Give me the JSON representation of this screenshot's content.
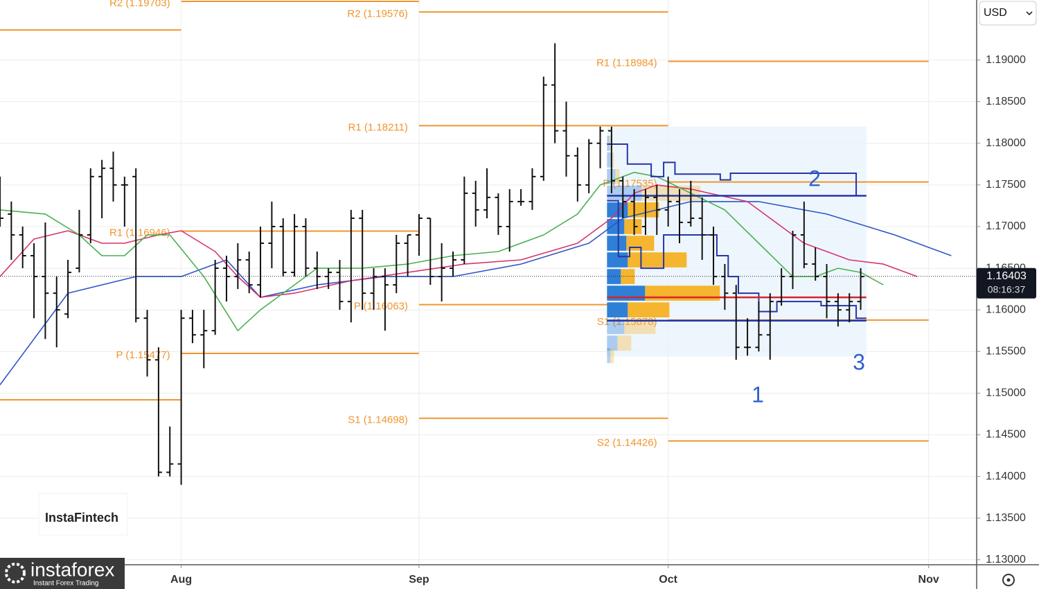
{
  "chart_data": {
    "type": "ohlc",
    "currency": "USD",
    "ylim": [
      1.1294,
      1.1972
    ],
    "yticks": [
      {
        "value": 1.13,
        "label": "1.13000"
      },
      {
        "value": 1.135,
        "label": "1.13500"
      },
      {
        "value": 1.14,
        "label": "1.14000"
      },
      {
        "value": 1.145,
        "label": "1.14500"
      },
      {
        "value": 1.15,
        "label": "1.15000"
      },
      {
        "value": 1.155,
        "label": "1.15500"
      },
      {
        "value": 1.16,
        "label": "1.16000"
      },
      {
        "value": 1.165,
        "label": "1.16500"
      },
      {
        "value": 1.17,
        "label": "1.17000"
      },
      {
        "value": 1.175,
        "label": "1.17500"
      },
      {
        "value": 1.18,
        "label": "1.18000"
      },
      {
        "value": 1.185,
        "label": "1.18500"
      },
      {
        "value": 1.19,
        "label": "1.19000"
      }
    ],
    "xlim": [
      -16,
      70.24
    ],
    "xticks": [
      {
        "value": 0,
        "label": "Aug"
      },
      {
        "value": 21,
        "label": "Sep"
      },
      {
        "value": 43,
        "label": "Oct"
      },
      {
        "value": 66,
        "label": "Nov"
      }
    ],
    "grid": true,
    "ohlc": {
      "color": "#111111",
      "x": [
        -16,
        -15,
        -14,
        -13,
        -12,
        -11,
        -10,
        -9,
        -8,
        -7,
        -6,
        -5,
        -4,
        -3,
        -2,
        -1,
        0,
        1,
        2,
        3,
        4,
        5,
        6,
        7,
        8,
        9,
        10,
        11,
        12,
        13,
        14,
        15,
        16,
        17,
        18,
        19,
        20,
        21,
        22,
        23,
        24,
        25,
        26,
        27,
        28,
        29,
        30,
        31,
        32,
        33,
        34,
        35,
        36,
        37,
        38,
        39,
        40,
        41,
        42,
        43,
        44,
        45,
        46,
        47,
        48,
        49,
        50,
        51,
        52,
        53,
        54,
        55,
        56,
        57,
        58,
        59,
        60
      ],
      "open": [
        1.174,
        1.1715,
        1.169,
        1.1665,
        1.164,
        1.162,
        1.1595,
        1.165,
        1.169,
        1.176,
        1.177,
        1.175,
        1.176,
        1.159,
        1.154,
        1.1405,
        1.1415,
        1.159,
        1.157,
        1.1575,
        1.165,
        1.164,
        1.166,
        1.163,
        1.168,
        1.17,
        1.1645,
        1.17,
        1.165,
        1.164,
        1.1645,
        1.161,
        1.171,
        1.162,
        1.164,
        1.163,
        1.168,
        1.169,
        1.171,
        1.164,
        1.165,
        1.166,
        1.174,
        1.172,
        1.1735,
        1.17,
        1.173,
        1.173,
        1.176,
        1.187,
        1.1815,
        1.1785,
        1.175,
        1.18,
        1.1815,
        1.1755,
        1.173,
        1.17,
        1.1735,
        1.172,
        1.173,
        1.1705,
        1.171,
        1.169,
        1.164,
        1.162,
        1.1555,
        1.1555,
        1.157,
        1.161,
        1.164,
        1.169,
        1.1655,
        1.164,
        1.161,
        1.16,
        1.161
      ],
      "high": [
        1.176,
        1.173,
        1.17,
        1.168,
        1.1705,
        1.164,
        1.166,
        1.172,
        1.177,
        1.178,
        1.179,
        1.176,
        1.177,
        1.16,
        1.1555,
        1.146,
        1.16,
        1.16,
        1.16,
        1.166,
        1.1665,
        1.168,
        1.167,
        1.17,
        1.173,
        1.171,
        1.1715,
        1.171,
        1.167,
        1.165,
        1.166,
        1.172,
        1.172,
        1.165,
        1.165,
        1.169,
        1.169,
        1.1715,
        1.171,
        1.168,
        1.167,
        1.176,
        1.1755,
        1.177,
        1.174,
        1.1745,
        1.1745,
        1.177,
        1.188,
        1.192,
        1.185,
        1.1795,
        1.1805,
        1.182,
        1.182,
        1.176,
        1.1745,
        1.1745,
        1.175,
        1.176,
        1.1745,
        1.1755,
        1.1735,
        1.17,
        1.1655,
        1.163,
        1.159,
        1.161,
        1.162,
        1.165,
        1.1695,
        1.173,
        1.1675,
        1.1655,
        1.162,
        1.162,
        1.165
      ],
      "low": [
        1.17,
        1.166,
        1.165,
        1.159,
        1.1565,
        1.1555,
        1.159,
        1.1645,
        1.168,
        1.171,
        1.173,
        1.17,
        1.1585,
        1.152,
        1.14,
        1.14,
        1.139,
        1.156,
        1.153,
        1.157,
        1.161,
        1.1625,
        1.162,
        1.1615,
        1.165,
        1.164,
        1.164,
        1.164,
        1.1625,
        1.1625,
        1.16,
        1.1585,
        1.16,
        1.16,
        1.1575,
        1.162,
        1.164,
        1.1665,
        1.163,
        1.161,
        1.164,
        1.1655,
        1.17,
        1.171,
        1.169,
        1.167,
        1.1725,
        1.172,
        1.1755,
        1.18,
        1.176,
        1.173,
        1.174,
        1.177,
        1.174,
        1.171,
        1.169,
        1.169,
        1.169,
        1.17,
        1.168,
        1.17,
        1.166,
        1.163,
        1.16,
        1.154,
        1.1545,
        1.155,
        1.154,
        1.1605,
        1.1625,
        1.165,
        1.1635,
        1.159,
        1.158,
        1.1585,
        1.16
      ],
      "close": [
        1.171,
        1.169,
        1.1665,
        1.164,
        1.162,
        1.16,
        1.1645,
        1.169,
        1.176,
        1.177,
        1.175,
        1.175,
        1.159,
        1.154,
        1.1405,
        1.1415,
        1.159,
        1.157,
        1.1575,
        1.165,
        1.164,
        1.166,
        1.163,
        1.168,
        1.17,
        1.1645,
        1.17,
        1.165,
        1.164,
        1.1645,
        1.161,
        1.171,
        1.162,
        1.164,
        1.163,
        1.168,
        1.169,
        1.171,
        1.164,
        1.165,
        1.166,
        1.174,
        1.172,
        1.1735,
        1.17,
        1.173,
        1.173,
        1.176,
        1.187,
        1.1815,
        1.1785,
        1.175,
        1.18,
        1.1815,
        1.1755,
        1.173,
        1.17,
        1.1735,
        1.172,
        1.173,
        1.1705,
        1.171,
        1.169,
        1.164,
        1.162,
        1.1555,
        1.1555,
        1.157,
        1.161,
        1.164,
        1.169,
        1.1655,
        1.164,
        1.161,
        1.16,
        1.161,
        1.164
      ]
    },
    "series": [
      {
        "color": "#2f55c8",
        "x": [
          -16,
          -10,
          -4,
          0,
          4,
          7,
          12,
          18,
          24,
          30,
          36,
          39,
          42,
          45,
          51,
          57,
          63,
          68
        ],
        "values": [
          1.151,
          1.162,
          1.164,
          1.164,
          1.166,
          1.1615,
          1.163,
          1.164,
          1.164,
          1.1655,
          1.168,
          1.171,
          1.172,
          1.173,
          1.173,
          1.1715,
          1.169,
          1.1665
        ]
      },
      {
        "color": "#d6336c",
        "x": [
          -16,
          -13,
          -10,
          -7,
          -5,
          -2,
          0,
          3,
          5,
          7,
          10,
          15,
          20,
          25,
          30,
          35,
          38,
          40,
          42,
          45,
          50,
          55,
          59,
          62,
          65
        ],
        "values": [
          1.164,
          1.1685,
          1.1695,
          1.168,
          1.168,
          1.169,
          1.1695,
          1.167,
          1.164,
          1.1615,
          1.162,
          1.1635,
          1.1645,
          1.1655,
          1.166,
          1.168,
          1.171,
          1.174,
          1.175,
          1.1745,
          1.173,
          1.168,
          1.166,
          1.1655,
          1.164
        ]
      },
      {
        "color": "#4caf50",
        "x": [
          -16,
          -12,
          -9,
          -7,
          -5,
          -3,
          -1,
          2,
          5,
          7,
          9,
          12,
          16,
          20,
          24,
          28,
          32,
          35,
          37,
          40,
          42,
          45,
          48,
          51,
          54,
          56,
          58,
          60,
          62
        ],
        "values": [
          1.172,
          1.1715,
          1.169,
          1.1665,
          1.1665,
          1.169,
          1.169,
          1.164,
          1.1575,
          1.16,
          1.162,
          1.165,
          1.165,
          1.1655,
          1.1665,
          1.167,
          1.169,
          1.1715,
          1.175,
          1.1765,
          1.176,
          1.174,
          1.172,
          1.168,
          1.164,
          1.164,
          1.165,
          1.1645,
          1.163
        ]
      }
    ],
    "levels": [
      {
        "label": null,
        "value": 1.1936,
        "start": -16,
        "end": 0
      },
      {
        "label": null,
        "value": 1.1492,
        "start": -16,
        "end": 0
      },
      {
        "label": "R2 (1.19703)",
        "value": 1.19703,
        "start": 0,
        "end": 21
      },
      {
        "label": "R1 (1.16946)",
        "value": 1.16946,
        "start": 0,
        "end": 21
      },
      {
        "label": "P (1.15477)",
        "value": 1.15477,
        "start": 0,
        "end": 21
      },
      {
        "label": "R2 (1.19576)",
        "value": 1.19576,
        "start": 21,
        "end": 43
      },
      {
        "label": "R1 (1.18211)",
        "value": 1.18211,
        "start": 21,
        "end": 43
      },
      {
        "label": "P (1.16063)",
        "value": 1.16063,
        "start": 21,
        "end": 43
      },
      {
        "label": "S1 (1.14698)",
        "value": 1.14698,
        "start": 21,
        "end": 43
      },
      {
        "label": "R1 (1.18984)",
        "value": 1.18984,
        "start": 43,
        "end": 66
      },
      {
        "label": "P (1.17535)",
        "value": 1.17535,
        "start": 43,
        "end": 66
      },
      {
        "label": "S1 (1.15878)",
        "value": 1.15878,
        "start": 43,
        "end": 66
      },
      {
        "label": "S2 (1.14426)",
        "value": 1.14426,
        "start": 43,
        "end": 66
      }
    ],
    "level_color": "#f0952d",
    "profile": {
      "start": 37.6,
      "end": 60.5,
      "range": [
        1.1544,
        1.182
      ],
      "value_area": [
        1.1587,
        1.1737
      ],
      "poc": 1.1615,
      "buy_color": "#2f7fd6",
      "sell_color": "#f5b52e",
      "poc_color": "#d8232a",
      "area_color": "#2634a8",
      "prices": [
        1.18,
        1.178,
        1.176,
        1.174,
        1.172,
        1.17,
        1.168,
        1.166,
        1.164,
        1.162,
        1.16,
        1.158,
        1.156,
        1.1545
      ],
      "buy": [
        4,
        6,
        12,
        50,
        30,
        25,
        28,
        30,
        20,
        55,
        30,
        25,
        15,
        5
      ],
      "sell": [
        2,
        4,
        6,
        85,
        45,
        25,
        40,
        85,
        20,
        108,
        60,
        45,
        20,
        5
      ],
      "dev_high": {
        "x": [
          37.6,
          39.4,
          41.5,
          42.6,
          43.6,
          47.6,
          48.5,
          59.6
        ],
        "values": [
          1.1799,
          1.1775,
          1.176,
          1.1777,
          1.1763,
          1.1756,
          1.1764,
          1.1737
        ]
      },
      "dev_low": {
        "x": [
          37.6,
          38.6,
          39.6,
          40.6,
          42.6,
          46.6,
          47.3,
          48.3,
          49.2,
          51.0,
          52.6,
          56.5,
          59.6
        ],
        "values": [
          1.1731,
          1.1664,
          1.1675,
          1.165,
          1.169,
          1.169,
          1.1665,
          1.164,
          1.162,
          1.1598,
          1.161,
          1.1605,
          1.159
        ]
      }
    },
    "annotations": [
      "1",
      "2",
      "3"
    ],
    "current_price": {
      "value": 1.16403,
      "label": "1.16403"
    },
    "countdown": "08:16:37",
    "watermark": "InstaFintech",
    "logo": {
      "name": "instaforex",
      "tagline": "Instant Forex Trading"
    }
  }
}
